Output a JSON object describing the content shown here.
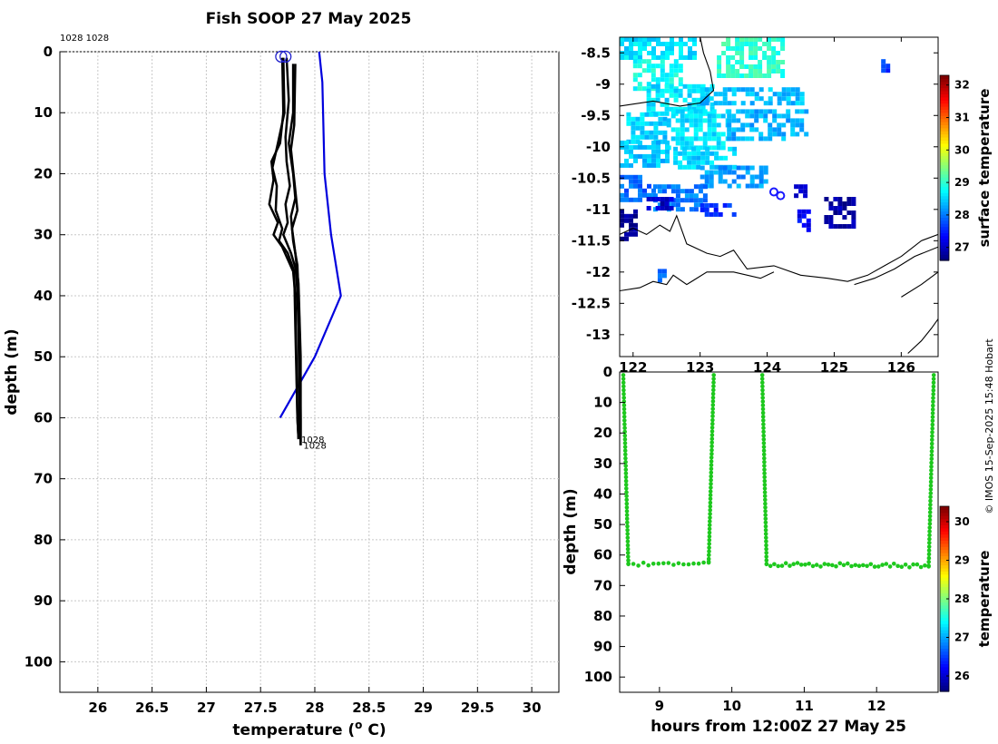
{
  "page": {
    "title": "Fish SOOP 27 May 2025",
    "credit": "© IMOS 15-Sep-2025 15:48 Hobart"
  },
  "chart_data": [
    {
      "id": "profile",
      "type": "line",
      "xlabel": "temperature (",
      "xlabel_sup": "o",
      "xlabel_tail": " C)",
      "ylabel": "depth (m)",
      "xlim": [
        25.65,
        30.25
      ],
      "ylim": [
        105,
        0
      ],
      "xticks": [
        26,
        26.5,
        27,
        27.5,
        28,
        28.5,
        29,
        29.5,
        30
      ],
      "xtick_labels": [
        "26",
        "26.5",
        "27",
        "27.5",
        "28",
        "28.5",
        "29",
        "29.5",
        "30"
      ],
      "yticks": [
        0,
        10,
        20,
        30,
        40,
        50,
        60,
        70,
        80,
        90,
        100
      ],
      "ytick_labels": [
        "0",
        "10",
        "20",
        "30",
        "40",
        "50",
        "60",
        "70",
        "80",
        "90",
        "100"
      ],
      "top_label": "1028 1028",
      "end_labels": [
        "1028",
        "1028"
      ],
      "end_label_points": [
        [
          27.85,
          63.5
        ],
        [
          27.87,
          64.5
        ]
      ],
      "start_markers": [
        [
          27.69,
          0.8
        ],
        [
          27.73,
          0.8
        ]
      ],
      "climatology": {
        "name": "climatology",
        "color": "#0000dd",
        "points": [
          [
            28.04,
            0
          ],
          [
            28.07,
            5
          ],
          [
            28.09,
            20
          ],
          [
            28.15,
            30
          ],
          [
            28.24,
            40
          ],
          [
            28.0,
            50
          ],
          [
            27.68,
            60
          ]
        ]
      },
      "series": [
        {
          "name": "cast-a",
          "color": "#000000",
          "points": [
            [
              27.7,
              1
            ],
            [
              27.71,
              10
            ],
            [
              27.68,
              15
            ],
            [
              27.6,
              18
            ],
            [
              27.62,
              21
            ],
            [
              27.58,
              25
            ],
            [
              27.66,
              28
            ],
            [
              27.62,
              30
            ],
            [
              27.7,
              32
            ],
            [
              27.8,
              36
            ],
            [
              27.82,
              40
            ],
            [
              27.83,
              50
            ],
            [
              27.84,
              60
            ],
            [
              27.85,
              63.5
            ]
          ]
        },
        {
          "name": "cast-b",
          "color": "#000000",
          "points": [
            [
              27.71,
              1
            ],
            [
              27.72,
              10
            ],
            [
              27.66,
              15
            ],
            [
              27.61,
              19
            ],
            [
              27.65,
              22
            ],
            [
              27.64,
              26
            ],
            [
              27.7,
              29
            ],
            [
              27.67,
              31
            ],
            [
              27.75,
              33
            ],
            [
              27.81,
              36
            ],
            [
              27.82,
              45
            ],
            [
              27.84,
              60
            ],
            [
              27.85,
              63.5
            ]
          ]
        },
        {
          "name": "cast-c",
          "color": "#000000",
          "points": [
            [
              27.74,
              1
            ],
            [
              27.76,
              8
            ],
            [
              27.73,
              14
            ],
            [
              27.74,
              18
            ],
            [
              27.77,
              22
            ],
            [
              27.73,
              25
            ],
            [
              27.75,
              28
            ],
            [
              27.71,
              30
            ],
            [
              27.78,
              33
            ],
            [
              27.83,
              36
            ],
            [
              27.85,
              45
            ],
            [
              27.86,
              60
            ],
            [
              27.87,
              64.5
            ]
          ]
        },
        {
          "name": "cast-d",
          "color": "#000000",
          "points": [
            [
              27.8,
              2
            ],
            [
              27.8,
              10
            ],
            [
              27.76,
              15
            ],
            [
              27.8,
              20
            ],
            [
              27.82,
              24
            ],
            [
              27.78,
              27
            ],
            [
              27.8,
              31
            ],
            [
              27.84,
              35
            ],
            [
              27.86,
              45
            ],
            [
              27.87,
              60
            ],
            [
              27.87,
              64.5
            ]
          ]
        },
        {
          "name": "cast-e",
          "color": "#000000",
          "points": [
            [
              27.82,
              2
            ],
            [
              27.81,
              12
            ],
            [
              27.78,
              16
            ],
            [
              27.81,
              21
            ],
            [
              27.84,
              26
            ],
            [
              27.79,
              29
            ],
            [
              27.82,
              33
            ],
            [
              27.85,
              38
            ],
            [
              27.87,
              50
            ],
            [
              27.87,
              64
            ]
          ]
        }
      ]
    },
    {
      "id": "map",
      "type": "heatmap",
      "xlim": [
        121.8,
        126.55
      ],
      "ylim": [
        -13.35,
        -8.25
      ],
      "xtick_labels": [
        "122",
        "123",
        "124",
        "125",
        "126"
      ],
      "xticks": [
        122,
        123,
        124,
        125,
        126
      ],
      "yticks": [
        -8.5,
        -9,
        -9.5,
        -10,
        -10.5,
        -11,
        -11.5,
        -12,
        -12.5,
        -13
      ],
      "ytick_labels": [
        "-8.5",
        "-9",
        "-9.5",
        "-10",
        "-10.5",
        "-11",
        "-11.5",
        "-12",
        "-12.5",
        "-13"
      ],
      "colorbar": {
        "label": "surface temperature",
        "range": [
          26.6,
          32.3
        ],
        "ticks": [
          27,
          28,
          29,
          30,
          31,
          32
        ],
        "tick_labels": [
          "27",
          "28",
          "29",
          "30",
          "31",
          "32"
        ]
      },
      "sst_blocks": [
        {
          "lon": [
            121.8,
            122.9
          ],
          "lat": [
            -8.6,
            -8.25
          ],
          "t": 28.6
        },
        {
          "lon": [
            123.25,
            124.2
          ],
          "lat": [
            -8.9,
            -8.25
          ],
          "t": 29.0
        },
        {
          "lon": [
            122.0,
            122.7
          ],
          "lat": [
            -9.05,
            -8.6
          ],
          "t": 28.8
        },
        {
          "lon": [
            122.2,
            123.2
          ],
          "lat": [
            -9.5,
            -9.0
          ],
          "t": 28.6
        },
        {
          "lon": [
            123.0,
            124.5
          ],
          "lat": [
            -9.3,
            -9.05
          ],
          "t": 28.4
        },
        {
          "lon": [
            121.9,
            122.5
          ],
          "lat": [
            -9.9,
            -9.45
          ],
          "t": 28.5
        },
        {
          "lon": [
            122.5,
            123.4
          ],
          "lat": [
            -10.0,
            -9.4
          ],
          "t": 28.6
        },
        {
          "lon": [
            123.4,
            124.6
          ],
          "lat": [
            -9.9,
            -9.4
          ],
          "t": 28.3
        },
        {
          "lon": [
            121.8,
            122.5
          ],
          "lat": [
            -10.3,
            -9.9
          ],
          "t": 28.4
        },
        {
          "lon": [
            122.6,
            123.5
          ],
          "lat": [
            -10.3,
            -10.0
          ],
          "t": 28.5
        },
        {
          "lon": [
            123.0,
            124.0
          ],
          "lat": [
            -10.6,
            -10.3
          ],
          "t": 28.2
        },
        {
          "lon": [
            121.8,
            122.3
          ],
          "lat": [
            -10.85,
            -10.45
          ],
          "t": 27.9
        },
        {
          "lon": [
            122.3,
            123.1
          ],
          "lat": [
            -11.0,
            -10.6
          ],
          "t": 28.0
        },
        {
          "lon": [
            121.8,
            122.05
          ],
          "lat": [
            -11.5,
            -11.0
          ],
          "t": 26.8
        },
        {
          "lon": [
            122.2,
            122.6
          ],
          "lat": [
            -11.0,
            -10.8
          ],
          "t": 27.0
        },
        {
          "lon": [
            124.85,
            125.3
          ],
          "lat": [
            -11.25,
            -10.8
          ],
          "t": 26.8
        },
        {
          "lon": [
            124.4,
            124.6
          ],
          "lat": [
            -10.8,
            -10.6
          ],
          "t": 27.1
        },
        {
          "lon": [
            124.45,
            124.6
          ],
          "lat": [
            -11.3,
            -11.0
          ],
          "t": 27.3
        },
        {
          "lon": [
            123.0,
            123.5
          ],
          "lat": [
            -11.1,
            -10.9
          ],
          "t": 27.6
        },
        {
          "lon": [
            122.3,
            122.5
          ],
          "lat": [
            -12.1,
            -11.95
          ],
          "t": 27.8
        },
        {
          "lon": [
            125.7,
            125.8
          ],
          "lat": [
            -8.75,
            -8.6
          ],
          "t": 27.6
        }
      ],
      "coastlines": [
        [
          [
            121.8,
            -9.35
          ],
          [
            122.3,
            -9.27
          ],
          [
            122.7,
            -9.35
          ],
          [
            123.0,
            -9.3
          ],
          [
            123.2,
            -9.1
          ],
          [
            123.15,
            -8.8
          ],
          [
            123.05,
            -8.5
          ],
          [
            123.0,
            -8.25
          ]
        ],
        [
          [
            121.8,
            -11.4
          ],
          [
            122.0,
            -11.3
          ],
          [
            122.2,
            -11.4
          ],
          [
            122.4,
            -11.25
          ],
          [
            122.55,
            -11.35
          ],
          [
            122.65,
            -11.1
          ],
          [
            122.8,
            -11.55
          ],
          [
            123.1,
            -11.7
          ],
          [
            123.3,
            -11.75
          ],
          [
            123.5,
            -11.65
          ],
          [
            123.7,
            -11.95
          ],
          [
            124.1,
            -11.9
          ],
          [
            124.5,
            -12.05
          ],
          [
            124.9,
            -12.1
          ],
          [
            125.2,
            -12.15
          ],
          [
            125.5,
            -12.05
          ],
          [
            125.75,
            -11.9
          ],
          [
            126.0,
            -11.75
          ],
          [
            126.3,
            -11.5
          ],
          [
            126.55,
            -11.4
          ]
        ],
        [
          [
            121.8,
            -12.3
          ],
          [
            122.1,
            -12.25
          ],
          [
            122.3,
            -12.15
          ],
          [
            122.5,
            -12.2
          ],
          [
            122.6,
            -12.05
          ],
          [
            122.8,
            -12.2
          ],
          [
            123.1,
            -12.0
          ],
          [
            123.5,
            -12.0
          ],
          [
            123.9,
            -12.1
          ],
          [
            124.1,
            -12.0
          ]
        ],
        [
          [
            125.3,
            -12.2
          ],
          [
            125.6,
            -12.1
          ],
          [
            125.9,
            -11.95
          ],
          [
            126.2,
            -11.75
          ],
          [
            126.55,
            -11.6
          ]
        ],
        [
          [
            126.0,
            -12.4
          ],
          [
            126.3,
            -12.2
          ],
          [
            126.55,
            -12.0
          ]
        ],
        [
          [
            126.1,
            -13.3
          ],
          [
            126.3,
            -13.1
          ],
          [
            126.45,
            -12.9
          ],
          [
            126.55,
            -12.75
          ]
        ]
      ],
      "track_markers": [
        [
          124.1,
          -10.72
        ],
        [
          124.2,
          -10.78
        ]
      ]
    },
    {
      "id": "timeseries",
      "type": "scatter",
      "xlabel": "hours from 12:00Z 27 May 25",
      "ylabel": "depth (m)",
      "xlim": [
        8.45,
        12.85
      ],
      "ylim": [
        105,
        0
      ],
      "xticks": [
        9,
        10,
        11,
        12
      ],
      "xtick_labels": [
        "9",
        "10",
        "11",
        "12"
      ],
      "yticks": [
        0,
        10,
        20,
        30,
        40,
        50,
        60,
        70,
        80,
        90,
        100
      ],
      "ytick_labels": [
        "0",
        "10",
        "20",
        "30",
        "40",
        "50",
        "60",
        "70",
        "80",
        "90",
        "100"
      ],
      "point_color": "#1ec81e",
      "colorbar": {
        "label": "temperature",
        "range": [
          25.6,
          30.4
        ],
        "ticks": [
          26,
          27,
          28,
          29,
          30
        ],
        "tick_labels": [
          "26",
          "27",
          "28",
          "29",
          "30"
        ]
      },
      "segments": [
        {
          "t0": 8.5,
          "d0": 1,
          "t1": 8.57,
          "d1": 63,
          "n": 50
        },
        {
          "t0": 8.57,
          "d0": 63,
          "t1": 9.68,
          "d1": 62.5,
          "n": 16
        },
        {
          "t0": 9.68,
          "d0": 62.5,
          "t1": 9.75,
          "d1": 1,
          "n": 50
        },
        {
          "t0": 10.42,
          "d0": 1,
          "t1": 10.48,
          "d1": 63,
          "n": 50
        },
        {
          "t0": 10.48,
          "d0": 63,
          "t1": 12.72,
          "d1": 63.5,
          "n": 42
        },
        {
          "t0": 12.72,
          "d0": 63.5,
          "t1": 12.79,
          "d1": 1,
          "n": 50
        }
      ]
    }
  ]
}
